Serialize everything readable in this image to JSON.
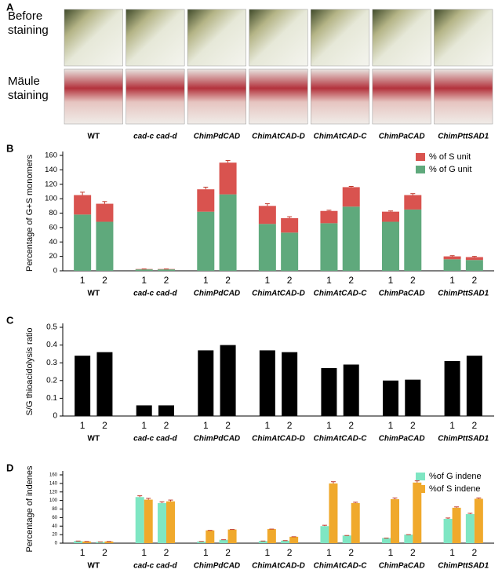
{
  "panel_a": {
    "label": "A",
    "rows": [
      "Before staining",
      "Mäule staining"
    ],
    "genotypes": [
      "WT",
      "cad-c cad-d",
      "ChimPdCAD",
      "ChimAtCAD-D",
      "ChimAtCAD-C",
      "ChimPaCAD",
      "ChimPttSAD1"
    ]
  },
  "chart_data": [
    {
      "type": "bar",
      "panel_label": "B",
      "stacked": true,
      "ylabel": "Percentage of G+S monomers",
      "categories": [
        "1",
        "2",
        "1",
        "2",
        "1",
        "2",
        "1",
        "2",
        "1",
        "2",
        "1",
        "2",
        "1",
        "2"
      ],
      "groups": [
        "WT",
        "cad-c cad-d",
        "ChimPdCAD",
        "ChimAtCAD-D",
        "ChimAtCAD-C",
        "ChimPaCAD",
        "ChimPttSAD1"
      ],
      "series": [
        {
          "name": "% of S unit",
          "color": "#d9534f",
          "values": [
            27,
            25,
            0.5,
            0.5,
            31,
            44,
            25,
            20,
            17,
            27,
            14,
            20,
            4,
            4
          ],
          "errors": [
            4,
            3,
            0,
            0,
            3,
            3,
            3,
            2,
            1,
            1,
            1,
            2,
            1,
            1
          ]
        },
        {
          "name": "% of G unit",
          "color": "#5fa97c",
          "values": [
            78,
            68,
            2,
            2,
            82,
            106,
            65,
            53,
            66,
            89,
            68,
            85,
            16,
            15
          ]
        }
      ],
      "ylim": [
        0,
        160
      ],
      "yticks": [
        0,
        20,
        40,
        60,
        80,
        100,
        120,
        140,
        160
      ],
      "legend": "upper right"
    },
    {
      "type": "bar",
      "panel_label": "C",
      "ylabel": "S/G thioacidolysis ratio",
      "color": "#000000",
      "categories": [
        "1",
        "2",
        "1",
        "2",
        "1",
        "2",
        "1",
        "2",
        "1",
        "2",
        "1",
        "2",
        "1",
        "2"
      ],
      "groups": [
        "WT",
        "cad-c cad-d",
        "ChimPdCAD",
        "ChimAtCAD-D",
        "ChimAtCAD-C",
        "ChimPaCAD",
        "ChimPttSAD1"
      ],
      "values": [
        0.34,
        0.36,
        0.06,
        0.06,
        0.37,
        0.4,
        0.37,
        0.36,
        0.27,
        0.29,
        0.2,
        0.205,
        0.31,
        0.34
      ],
      "ylim": [
        0,
        0.5
      ],
      "yticks": [
        0,
        0.1,
        0.2,
        0.3,
        0.4,
        0.5
      ]
    },
    {
      "type": "bar",
      "panel_label": "D",
      "ylabel": "Percentage of indenes",
      "categories": [
        "1",
        "2",
        "1",
        "2",
        "1",
        "2",
        "1",
        "2",
        "1",
        "2",
        "1",
        "2",
        "1",
        "2"
      ],
      "groups": [
        "WT",
        "cad-c cad-d",
        "ChimPdCAD",
        "ChimAtCAD-D",
        "ChimAtCAD-C",
        "ChimPaCAD",
        "ChimPttSAD1"
      ],
      "series": [
        {
          "name": "%of G indene",
          "color": "#7fe6c3",
          "values": [
            5,
            3,
            108,
            94,
            4,
            8,
            5,
            6,
            40,
            18,
            12,
            20,
            57,
            68
          ],
          "errors": [
            0,
            0,
            3,
            3,
            0,
            0,
            0,
            0,
            2,
            0,
            0,
            0,
            2,
            2
          ]
        },
        {
          "name": "%of S indene",
          "color": "#f0a92c",
          "values": [
            4,
            4,
            102,
            98,
            30,
            32,
            33,
            15,
            140,
            94,
            103,
            142,
            83,
            104
          ],
          "errors": [
            0,
            0,
            3,
            3,
            0,
            0,
            0,
            0,
            4,
            2,
            3,
            4,
            2,
            2
          ]
        }
      ],
      "ylim": [
        0,
        160
      ],
      "yticks": [
        0,
        20,
        40,
        60,
        80,
        100,
        120,
        140,
        160
      ],
      "legend": "upper right"
    }
  ]
}
